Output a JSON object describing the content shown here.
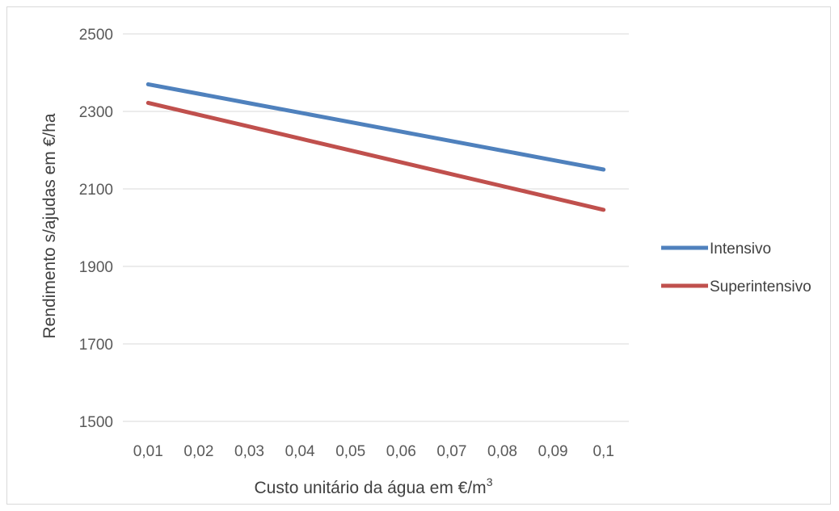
{
  "chart_data": {
    "type": "line",
    "title": "",
    "xlabel": "Custo unitário da água em €/m",
    "xlabel_superscript": "3",
    "ylabel": "Rendimento s/ajudas em €/ha",
    "categories": [
      "0,01",
      "0,02",
      "0,03",
      "0,04",
      "0,05",
      "0,06",
      "0,07",
      "0,08",
      "0,09",
      "0,1"
    ],
    "ylim": [
      1500,
      2500
    ],
    "yticks": [
      "1500",
      "1700",
      "1900",
      "2100",
      "2300",
      "2500"
    ],
    "grid": true,
    "legend_position": "right",
    "series": [
      {
        "name": "Intensivo",
        "color": "#4F81BD",
        "values": [
          2370,
          2345.6,
          2321.1,
          2296.7,
          2272.2,
          2247.8,
          2223.3,
          2198.9,
          2174.4,
          2150
        ]
      },
      {
        "name": "Superintensivo",
        "color": "#C0504D",
        "values": [
          2322,
          2291.3,
          2260.7,
          2230,
          2199.3,
          2168.7,
          2138,
          2107.3,
          2076.7,
          2046
        ]
      }
    ]
  }
}
